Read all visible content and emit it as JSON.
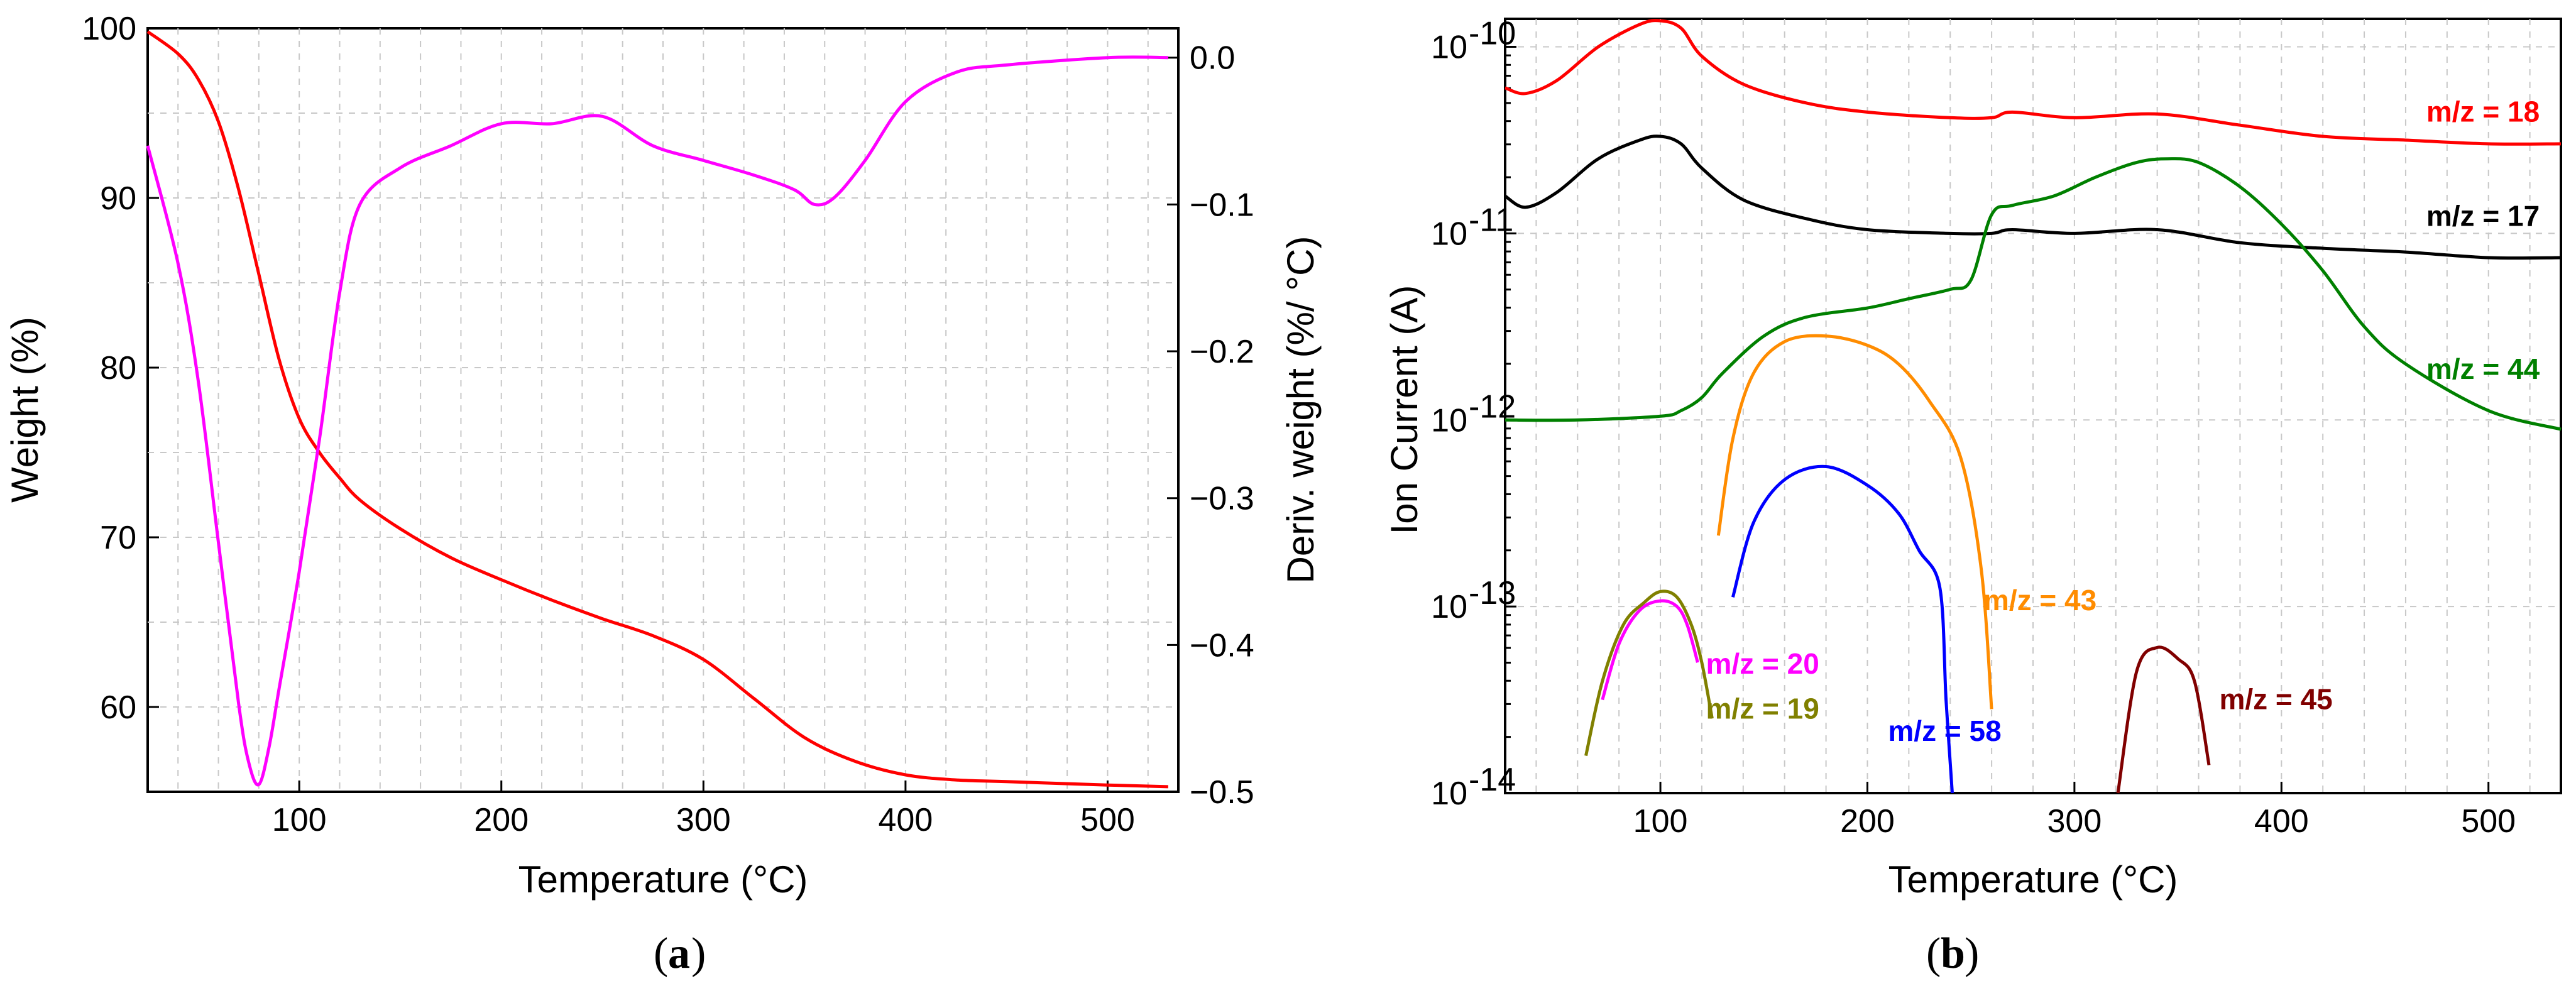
{
  "chart_data": [
    {
      "id": "a",
      "type": "line",
      "panel_label": "a",
      "xlabel": "Temperature (°C)",
      "ylabel": "Weight (%)",
      "y2label": "Deriv. weight (%/ °C)",
      "xlim": [
        25,
        535
      ],
      "ylim": [
        55,
        100
      ],
      "y2lim": [
        -0.5,
        0.02
      ],
      "xticks": [
        100,
        200,
        300,
        400,
        500
      ],
      "yticks": [
        60,
        70,
        80,
        90,
        100
      ],
      "y2ticks": [
        -0.5,
        -0.4,
        -0.3,
        -0.2,
        -0.1,
        0.0
      ],
      "y2tick_labels": [
        "−0.5",
        "−0.4",
        "−0.3",
        "−0.2",
        "−0.1",
        "0.0"
      ],
      "grid": true,
      "series": [
        {
          "name": "Weight",
          "axis": "y",
          "color": "#ff0000",
          "x": [
            25,
            40,
            50,
            60,
            70,
            80,
            90,
            100,
            110,
            120,
            130,
            150,
            175,
            200,
            225,
            250,
            275,
            300,
            325,
            350,
            375,
            400,
            425,
            450,
            500,
            530
          ],
          "y": [
            99.8,
            98.5,
            97,
            94.5,
            90.5,
            85.5,
            80.5,
            77,
            75,
            73.5,
            72.2,
            70.5,
            68.8,
            67.5,
            66.3,
            65.2,
            64.2,
            62.8,
            60.5,
            58.2,
            56.8,
            56,
            55.7,
            55.6,
            55.4,
            55.3
          ]
        },
        {
          "name": "Deriv. weight",
          "axis": "y2",
          "color": "#ff00ff",
          "x": [
            25,
            40,
            50,
            60,
            70,
            75,
            80,
            85,
            90,
            100,
            110,
            120,
            130,
            150,
            175,
            200,
            225,
            250,
            275,
            300,
            325,
            345,
            355,
            365,
            380,
            400,
            425,
            450,
            500,
            530
          ],
          "y": [
            -0.06,
            -0.14,
            -0.22,
            -0.33,
            -0.44,
            -0.48,
            -0.495,
            -0.47,
            -0.43,
            -0.35,
            -0.26,
            -0.16,
            -0.1,
            -0.075,
            -0.06,
            -0.045,
            -0.045,
            -0.04,
            -0.06,
            -0.07,
            -0.08,
            -0.09,
            -0.1,
            -0.095,
            -0.07,
            -0.03,
            -0.01,
            -0.005,
            0.0,
            0.0
          ]
        }
      ]
    },
    {
      "id": "b",
      "type": "line",
      "panel_label": "b",
      "xlabel": "Temperature (°C)",
      "ylabel": "Ion Current (A)",
      "yscale": "log",
      "xlim": [
        25,
        535
      ],
      "ylim_log10": [
        -14,
        -9.85
      ],
      "xticks": [
        100,
        200,
        300,
        400,
        500
      ],
      "ytick_exponents": [
        -14,
        -13,
        -12,
        -11,
        -10
      ],
      "ytick_base": "10",
      "grid": true,
      "series": [
        {
          "name": "m/z = 18",
          "color": "#ff0000",
          "x": [
            25,
            35,
            50,
            70,
            90,
            100,
            110,
            120,
            140,
            170,
            200,
            240,
            260,
            270,
            300,
            340,
            380,
            420,
            460,
            500,
            535
          ],
          "y_log10": [
            -10.22,
            -10.25,
            -10.18,
            -10.0,
            -9.88,
            -9.86,
            -9.9,
            -10.05,
            -10.2,
            -10.3,
            -10.35,
            -10.38,
            -10.38,
            -10.35,
            -10.38,
            -10.36,
            -10.42,
            -10.48,
            -10.5,
            -10.52,
            -10.52
          ]
        },
        {
          "name": "m/z = 17",
          "color": "#000000",
          "x": [
            25,
            35,
            50,
            70,
            90,
            100,
            110,
            120,
            140,
            170,
            200,
            240,
            260,
            270,
            300,
            340,
            380,
            420,
            460,
            500,
            535
          ],
          "y_log10": [
            -10.8,
            -10.86,
            -10.78,
            -10.6,
            -10.5,
            -10.48,
            -10.52,
            -10.65,
            -10.82,
            -10.92,
            -10.98,
            -11.0,
            -11.0,
            -10.98,
            -11.0,
            -10.98,
            -11.05,
            -11.08,
            -11.1,
            -11.13,
            -11.13
          ]
        },
        {
          "name": "m/z = 44",
          "color": "#008000",
          "x": [
            25,
            60,
            100,
            110,
            120,
            130,
            150,
            170,
            200,
            220,
            240,
            250,
            260,
            270,
            290,
            310,
            330,
            345,
            360,
            380,
            400,
            420,
            440,
            460,
            500,
            535
          ],
          "y_log10": [
            -12.0,
            -12.0,
            -11.98,
            -11.95,
            -11.88,
            -11.75,
            -11.55,
            -11.45,
            -11.4,
            -11.35,
            -11.3,
            -11.25,
            -10.9,
            -10.85,
            -10.8,
            -10.7,
            -10.62,
            -10.6,
            -10.62,
            -10.75,
            -10.95,
            -11.2,
            -11.5,
            -11.7,
            -11.95,
            -12.05
          ]
        },
        {
          "name": "m/z = 43",
          "color": "#ff8c00",
          "x": [
            128,
            135,
            145,
            160,
            180,
            200,
            215,
            230,
            245,
            255,
            260
          ],
          "y_log10": [
            -12.62,
            -12.1,
            -11.75,
            -11.58,
            -11.55,
            -11.6,
            -11.7,
            -11.9,
            -12.2,
            -12.8,
            -13.55
          ]
        },
        {
          "name": "m/z = 58",
          "color": "#0000ff",
          "x": [
            135,
            145,
            160,
            180,
            200,
            215,
            225,
            235,
            238,
            241
          ],
          "y_log10": [
            -12.95,
            -12.55,
            -12.32,
            -12.25,
            -12.35,
            -12.5,
            -12.7,
            -12.9,
            -13.5,
            -14.0
          ]
        },
        {
          "name": "m/z = 20",
          "color": "#ff00ff",
          "x": [
            72,
            80,
            90,
            100,
            108,
            113,
            118
          ],
          "y_log10": [
            -13.5,
            -13.2,
            -13.02,
            -12.97,
            -13.0,
            -13.1,
            -13.3
          ]
        },
        {
          "name": "m/z = 19",
          "color": "#808000",
          "x": [
            64,
            72,
            82,
            92,
            100,
            108,
            115,
            120,
            125
          ],
          "y_log10": [
            -13.8,
            -13.4,
            -13.1,
            -12.98,
            -12.92,
            -12.95,
            -13.1,
            -13.3,
            -13.6
          ]
        },
        {
          "name": "m/z = 45",
          "color": "#800000",
          "x": [
            321,
            330,
            340,
            350,
            358,
            365
          ],
          "y_log10": [
            -14.0,
            -13.35,
            -13.22,
            -13.28,
            -13.4,
            -13.85
          ]
        }
      ],
      "labels": [
        {
          "text": "m/z = 18",
          "color": "#ff0000",
          "x": 470,
          "y_log10": -10.4
        },
        {
          "text": "m/z = 17",
          "color": "#000000",
          "x": 470,
          "y_log10": -10.96
        },
        {
          "text": "m/z = 44",
          "color": "#008000",
          "x": 470,
          "y_log10": -11.78
        },
        {
          "text": "m/z = 43",
          "color": "#ff8c00",
          "x": 256,
          "y_log10": -13.02
        },
        {
          "text": "m/z = 58",
          "color": "#0000ff",
          "x": 210,
          "y_log10": -13.72
        },
        {
          "text": "m/z = 20",
          "color": "#ff00ff",
          "x": 122,
          "y_log10": -13.36
        },
        {
          "text": "m/z = 19",
          "color": "#808000",
          "x": 122,
          "y_log10": -13.6
        },
        {
          "text": "m/z = 45",
          "color": "#800000",
          "x": 370,
          "y_log10": -13.55
        }
      ]
    }
  ]
}
